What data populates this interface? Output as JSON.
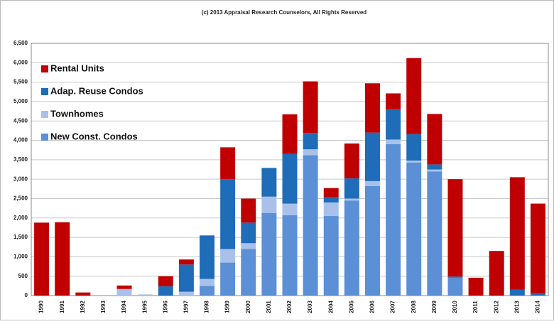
{
  "chart_data": {
    "type": "stacked_bar",
    "title": "(c) 2013 Appraisal Research Counselors, All Rights Reserved",
    "categories": [
      "1990",
      "1991",
      "1992",
      "1993",
      "1994",
      "1995",
      "1996",
      "1997",
      "1998",
      "1999",
      "2000",
      "2001",
      "2002",
      "2003",
      "2004",
      "2005",
      "2006",
      "2007",
      "2008",
      "2009",
      "2010",
      "2011",
      "2012",
      "2013",
      "2014"
    ],
    "series": [
      {
        "name": "New Const. Condos",
        "color": "#5b8fd6",
        "values": [
          0,
          0,
          0,
          0,
          0,
          0,
          0,
          0,
          250,
          850,
          1200,
          2130,
          2070,
          3620,
          2050,
          2450,
          2820,
          3900,
          3430,
          3200,
          460,
          0,
          0,
          0,
          0
        ]
      },
      {
        "name": "Townhomes",
        "color": "#a9c1ea",
        "values": [
          0,
          0,
          0,
          0,
          170,
          30,
          0,
          100,
          180,
          350,
          150,
          420,
          300,
          150,
          350,
          50,
          130,
          120,
          50,
          50,
          0,
          0,
          0,
          0,
          0
        ]
      },
      {
        "name": "Adap. Reuse Condos",
        "color": "#1f6cb8",
        "values": [
          0,
          0,
          0,
          0,
          0,
          0,
          240,
          700,
          1120,
          1800,
          530,
          740,
          1280,
          420,
          130,
          520,
          1250,
          780,
          680,
          130,
          30,
          0,
          0,
          150,
          50
        ]
      },
      {
        "name": "Rental Units",
        "color": "#c00000",
        "values": [
          1880,
          1890,
          80,
          0,
          90,
          0,
          260,
          130,
          0,
          820,
          620,
          0,
          1020,
          1330,
          240,
          900,
          1270,
          410,
          1960,
          1300,
          2510,
          460,
          1150,
          2900,
          2320
        ]
      }
    ],
    "ylim": [
      0,
      6500
    ],
    "yticks": [
      0,
      500,
      {
        "value": 1000,
        "label": "1,000"
      },
      {
        "value": 1500,
        "label": "1,500"
      },
      {
        "value": 2000,
        "label": "2,000"
      },
      {
        "value": 2500,
        "label": "2,500"
      },
      {
        "value": 3000,
        "label": "3,000"
      },
      {
        "value": 3500,
        "label": "3,500"
      },
      {
        "value": 4000,
        "label": "4,000"
      },
      {
        "value": 4500,
        "label": "4,500"
      },
      {
        "value": 5000,
        "label": "5,000"
      },
      {
        "value": 5500,
        "label": "5,500"
      },
      {
        "value": 6000,
        "label": "6,000"
      },
      {
        "value": 6500,
        "label": "6,500"
      }
    ],
    "grid": true
  }
}
